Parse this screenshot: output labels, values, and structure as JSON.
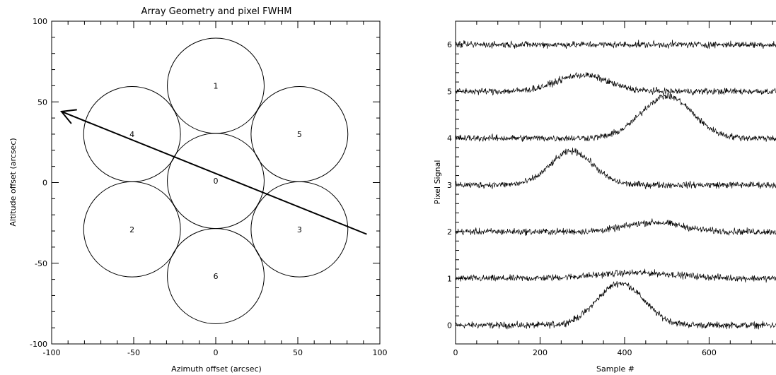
{
  "chart_data": [
    {
      "type": "scatter",
      "title": "Array Geometry and pixel FWHM",
      "xlabel": "Azimuth offset (arcsec)",
      "ylabel": "Altitude offset (arcsec)",
      "xlim": [
        -100,
        100
      ],
      "ylim": [
        -100,
        100
      ],
      "xticks": [
        -100,
        -50,
        0,
        50,
        100
      ],
      "yticks": [
        -100,
        -50,
        0,
        50,
        100
      ],
      "xtick_labels": [
        "-100",
        "-50",
        "0",
        "50",
        "100"
      ],
      "ytick_labels": [
        "-100",
        "-50",
        "0",
        "50",
        "100"
      ],
      "fwhm_diameter": 59,
      "pixels": [
        {
          "label": "0",
          "x": 0,
          "y": 1
        },
        {
          "label": "1",
          "x": 0,
          "y": 60
        },
        {
          "label": "2",
          "x": -51,
          "y": -29
        },
        {
          "label": "3",
          "x": 51,
          "y": -29
        },
        {
          "label": "4",
          "x": -51,
          "y": 30
        },
        {
          "label": "5",
          "x": 51,
          "y": 30
        },
        {
          "label": "6",
          "x": 0,
          "y": -58
        }
      ],
      "scan_path": {
        "start": [
          92,
          -32
        ],
        "end": [
          -94,
          44
        ]
      }
    },
    {
      "type": "line",
      "title": "",
      "xlabel": "Sample #",
      "ylabel": "Pixel Signal",
      "xlim": [
        0,
        770
      ],
      "ylim": [
        -0.4,
        6.5
      ],
      "xticks": [
        0,
        200,
        400,
        600
      ],
      "xtick_labels": [
        "0",
        "200",
        "400",
        "600"
      ],
      "yticks": [
        0,
        1,
        2,
        3,
        4,
        5,
        6
      ],
      "ytick_labels": [
        "0",
        "1",
        "2",
        "3",
        "4",
        "5",
        "6"
      ],
      "series": [
        {
          "offset": 0,
          "peak_sample": 390,
          "amplitude": 0.9,
          "width": 55
        },
        {
          "offset": 1,
          "peak_sample": 430,
          "amplitude": 0.12,
          "width": 100
        },
        {
          "offset": 2,
          "peak_sample": 470,
          "amplitude": 0.2,
          "width": 65
        },
        {
          "offset": 3,
          "peak_sample": 275,
          "amplitude": 0.72,
          "width": 50
        },
        {
          "offset": 4,
          "peak_sample": 500,
          "amplitude": 0.9,
          "width": 60
        },
        {
          "offset": 5,
          "peak_sample": 300,
          "amplitude": 0.35,
          "width": 60
        },
        {
          "offset": 6,
          "peak_sample": 0,
          "amplitude": 0,
          "width": 1
        }
      ]
    }
  ]
}
